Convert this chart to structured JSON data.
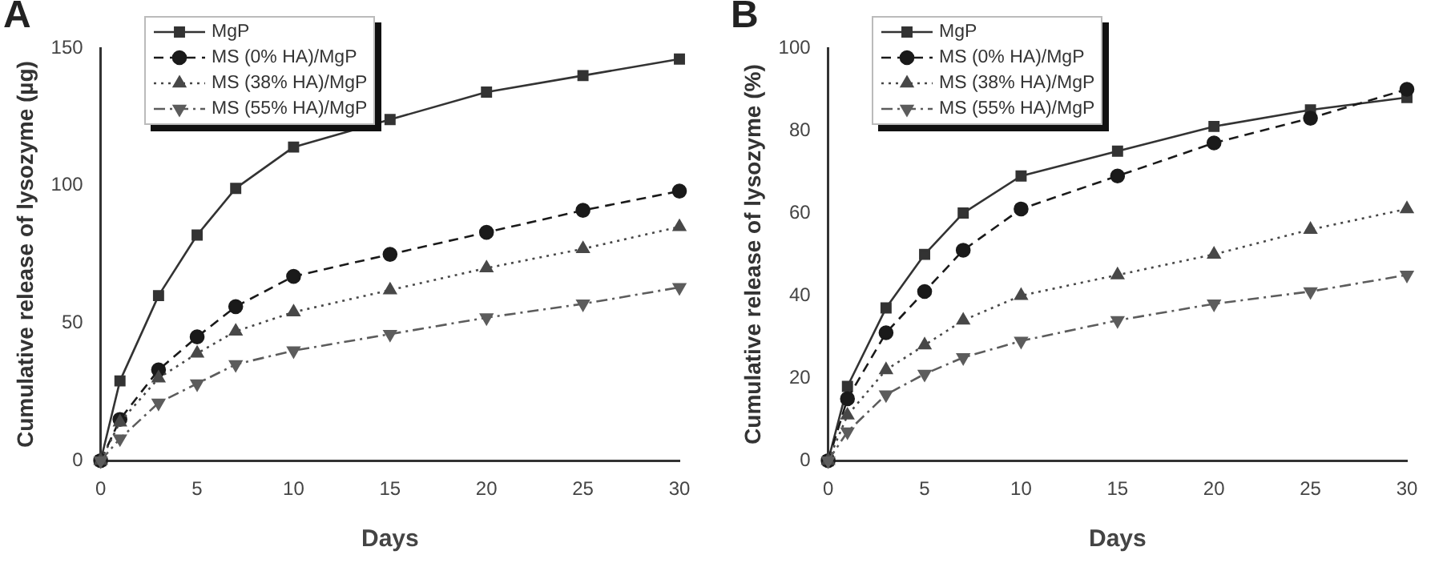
{
  "chart_data": [
    {
      "type": "line",
      "annotations": [
        "A"
      ],
      "xlabel": "Days",
      "ylabel": "Cumulative release of lysozyme (µg)",
      "x": [
        0,
        1,
        3,
        5,
        7,
        10,
        15,
        20,
        25,
        30
      ],
      "xlim": [
        0,
        30
      ],
      "xticks": [
        0,
        5,
        10,
        15,
        20,
        25,
        30
      ],
      "ylim": [
        0,
        150
      ],
      "yticks": [
        0,
        50,
        100,
        150
      ],
      "grid": false,
      "legend": "top left",
      "series": [
        {
          "name": "MgP",
          "color": "#333333",
          "marker": "square",
          "line_style": "solid",
          "values": [
            0,
            29,
            60,
            82,
            99,
            114,
            124,
            134,
            140,
            146
          ]
        },
        {
          "name": "MS (0% HA)/MgP",
          "color": "#1a1a1a",
          "marker": "circle",
          "line_style": "dashed",
          "values": [
            0,
            15,
            33,
            45,
            56,
            67,
            75,
            83,
            91,
            98
          ]
        },
        {
          "name": "MS (38% HA)/MgP",
          "color": "#484848",
          "marker": "triangle",
          "line_style": "dotted",
          "values": [
            0,
            14,
            30,
            39,
            47,
            54,
            62,
            70,
            77,
            85
          ]
        },
        {
          "name": "MS (55% HA)/MgP",
          "color": "#5c5c5c",
          "marker": "triangle_down",
          "line_style": "dashdot",
          "values": [
            0,
            8,
            21,
            28,
            35,
            40,
            46,
            52,
            57,
            63
          ]
        }
      ]
    },
    {
      "type": "line",
      "annotations": [
        "B"
      ],
      "xlabel": "Days",
      "ylabel": "Cumulative release of lysozyme (%)",
      "x": [
        0,
        1,
        3,
        5,
        7,
        10,
        15,
        20,
        25,
        30
      ],
      "xlim": [
        0,
        30
      ],
      "xticks": [
        0,
        5,
        10,
        15,
        20,
        25,
        30
      ],
      "ylim": [
        0,
        100
      ],
      "yticks": [
        0,
        20,
        40,
        60,
        80,
        100
      ],
      "grid": false,
      "legend": "top left",
      "series": [
        {
          "name": "MgP",
          "color": "#333333",
          "marker": "square",
          "line_style": "solid",
          "values": [
            0,
            18,
            37,
            50,
            60,
            69,
            75,
            81,
            85,
            88
          ]
        },
        {
          "name": "MS (0% HA)/MgP",
          "color": "#1a1a1a",
          "marker": "circle",
          "line_style": "dashed",
          "values": [
            0,
            15,
            31,
            41,
            51,
            61,
            69,
            77,
            83,
            90
          ]
        },
        {
          "name": "MS (38% HA)/MgP",
          "color": "#484848",
          "marker": "triangle",
          "line_style": "dotted",
          "values": [
            0,
            11,
            22,
            28,
            34,
            40,
            45,
            50,
            56,
            61
          ]
        },
        {
          "name": "MS (55% HA)/MgP",
          "color": "#5c5c5c",
          "marker": "triangle_down",
          "line_style": "dashdot",
          "values": [
            0,
            7,
            16,
            21,
            25,
            29,
            34,
            38,
            41,
            45
          ]
        }
      ]
    }
  ]
}
